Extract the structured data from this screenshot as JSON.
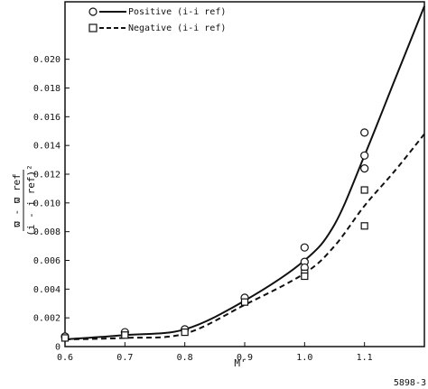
{
  "chart_data": {
    "type": "scatter",
    "xlabel": "M'",
    "ylabel_parts": {
      "numerator": "ϖ - ϖ ref",
      "denominator": "(i - i ref)²"
    },
    "xlim": [
      0.6,
      1.2
    ],
    "ylim": [
      0,
      0.024
    ],
    "xticks": [
      "0.6",
      "0.7",
      "0.8",
      "0.9",
      "1.0",
      "1.1"
    ],
    "xtick_values": [
      0.6,
      0.7,
      0.8,
      0.9,
      1.0,
      1.1
    ],
    "yticks": [
      "0",
      "0.002",
      "0.004",
      "0.006",
      "0.008",
      "0.010",
      "0.012",
      "0.014",
      "0.016",
      "0.018",
      "0.020"
    ],
    "ytick_values": [
      0,
      0.002,
      0.004,
      0.006,
      0.008,
      0.01,
      0.012,
      0.014,
      0.016,
      0.018,
      0.02
    ],
    "legend_position": "top-left",
    "series": [
      {
        "name": "Positive (i-i ref)",
        "style": "solid",
        "marker": "circle",
        "color": "#111111",
        "points": [
          [
            0.6,
            0.0007
          ],
          [
            0.7,
            0.001
          ],
          [
            0.8,
            0.0012
          ],
          [
            0.9,
            0.0034
          ],
          [
            1.0,
            0.0069
          ],
          [
            1.0,
            0.0059
          ],
          [
            1.0,
            0.0055
          ],
          [
            1.1,
            0.0149
          ],
          [
            1.1,
            0.0133
          ],
          [
            1.1,
            0.0124
          ]
        ],
        "curve": [
          [
            0.6,
            0.0005
          ],
          [
            0.7,
            0.0008
          ],
          [
            0.8,
            0.0012
          ],
          [
            0.9,
            0.0032
          ],
          [
            1.0,
            0.006
          ],
          [
            1.05,
            0.0085
          ],
          [
            1.1,
            0.0133
          ],
          [
            1.15,
            0.0185
          ],
          [
            1.2,
            0.0237
          ]
        ]
      },
      {
        "name": "Negative (i-i ref)",
        "style": "dashed",
        "marker": "square",
        "color": "#111111",
        "points": [
          [
            0.6,
            0.0006
          ],
          [
            0.7,
            0.0008
          ],
          [
            0.8,
            0.001
          ],
          [
            0.9,
            0.0031
          ],
          [
            1.0,
            0.0051
          ],
          [
            1.0,
            0.0049
          ],
          [
            1.1,
            0.0109
          ],
          [
            1.1,
            0.0084
          ]
        ],
        "curve": [
          [
            0.6,
            0.0005
          ],
          [
            0.7,
            0.0006
          ],
          [
            0.8,
            0.0009
          ],
          [
            0.9,
            0.0029
          ],
          [
            1.0,
            0.0051
          ],
          [
            1.05,
            0.007
          ],
          [
            1.1,
            0.0098
          ],
          [
            1.15,
            0.0122
          ],
          [
            1.2,
            0.0148
          ]
        ]
      }
    ],
    "figure_id": "5898-3"
  }
}
